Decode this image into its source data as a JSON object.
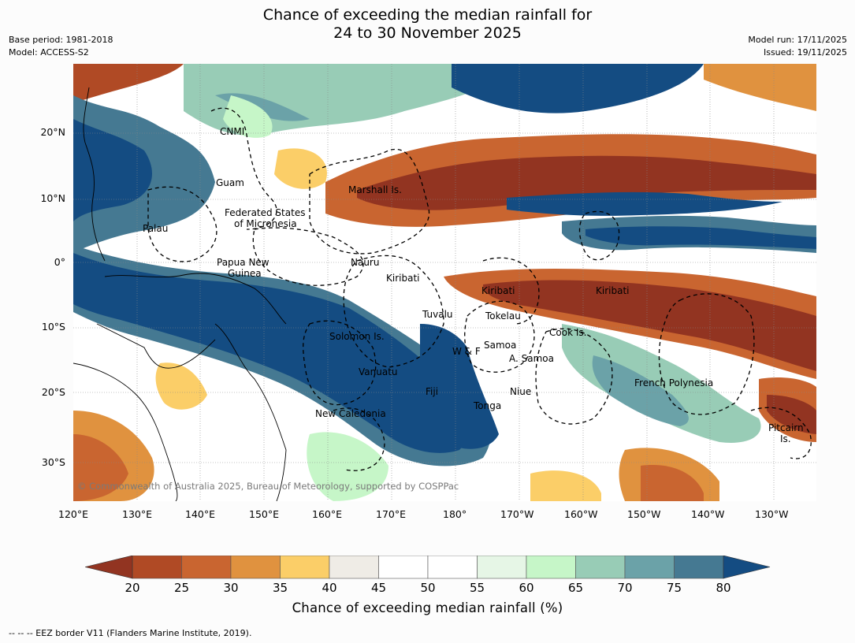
{
  "title": {
    "line1": "Chance of exceeding the median rainfall for",
    "line2": "24 to 30 November 2025"
  },
  "meta_left": {
    "base_period": "Base period: 1981-2018",
    "model": "Model: ACCESS-S2"
  },
  "meta_right": {
    "model_run": "Model run: 17/11/2025",
    "issued": "Issued: 19/11/2025"
  },
  "axes": {
    "lat_labels": [
      "20°N",
      "10°N",
      "0°",
      "10°S",
      "20°S",
      "30°S"
    ],
    "lon_labels": [
      "120°E",
      "130°E",
      "140°E",
      "150°E",
      "160°E",
      "170°E",
      "180°",
      "170°W",
      "160°W",
      "150°W",
      "140°W",
      "130°W"
    ]
  },
  "places": {
    "cnmi": "CNMI",
    "guam": "Guam",
    "marshall": "Marshall Is.",
    "fsm1": "Federated States",
    "fsm2": "of Micronesia",
    "palau": "Palau",
    "png1": "Papua New",
    "png2": "Guinea",
    "nauru": "Nauru",
    "kiribati_w": "Kiribati",
    "kiribati_c": "Kiribati",
    "kiribati_e": "Kiribati",
    "tuvalu": "Tuvalu",
    "tokelau": "Tokelau",
    "cook": "Cook Is.",
    "solomon": "Solomon Is.",
    "wf": "W & F",
    "samoa": "Samoa",
    "asamoa": "A. Samoa",
    "vanuatu": "Vanuatu",
    "fiji": "Fiji",
    "niue": "Niue",
    "tonga": "Tonga",
    "frenchpoly": "French Polynesia",
    "newcal": "New Caledonia",
    "pitcairn1": "Pitcairn",
    "pitcairn2": "Is."
  },
  "copyright": "© Commonwealth of Australia 2025, Bureau of Meteorology, supported by COSPPac",
  "colorbar": {
    "ticks": [
      "20",
      "25",
      "30",
      "35",
      "40",
      "45",
      "50",
      "55",
      "60",
      "65",
      "70",
      "75",
      "80"
    ],
    "label": "Chance of exceeding median rainfall (%)",
    "colors": [
      "#b04a25",
      "#c96530",
      "#e0923f",
      "#fbce68",
      "#efece6",
      "#ffffff",
      "#ffffff",
      "#e6f6e6",
      "#c6f6c8",
      "#98ccb6",
      "#6ba2a8",
      "#457992"
    ],
    "under_color": "#923421",
    "over_color": "#144c82"
  },
  "footer": "--  --  -- EEZ border V11 (Flanders Marine Institute, 2019)."
}
